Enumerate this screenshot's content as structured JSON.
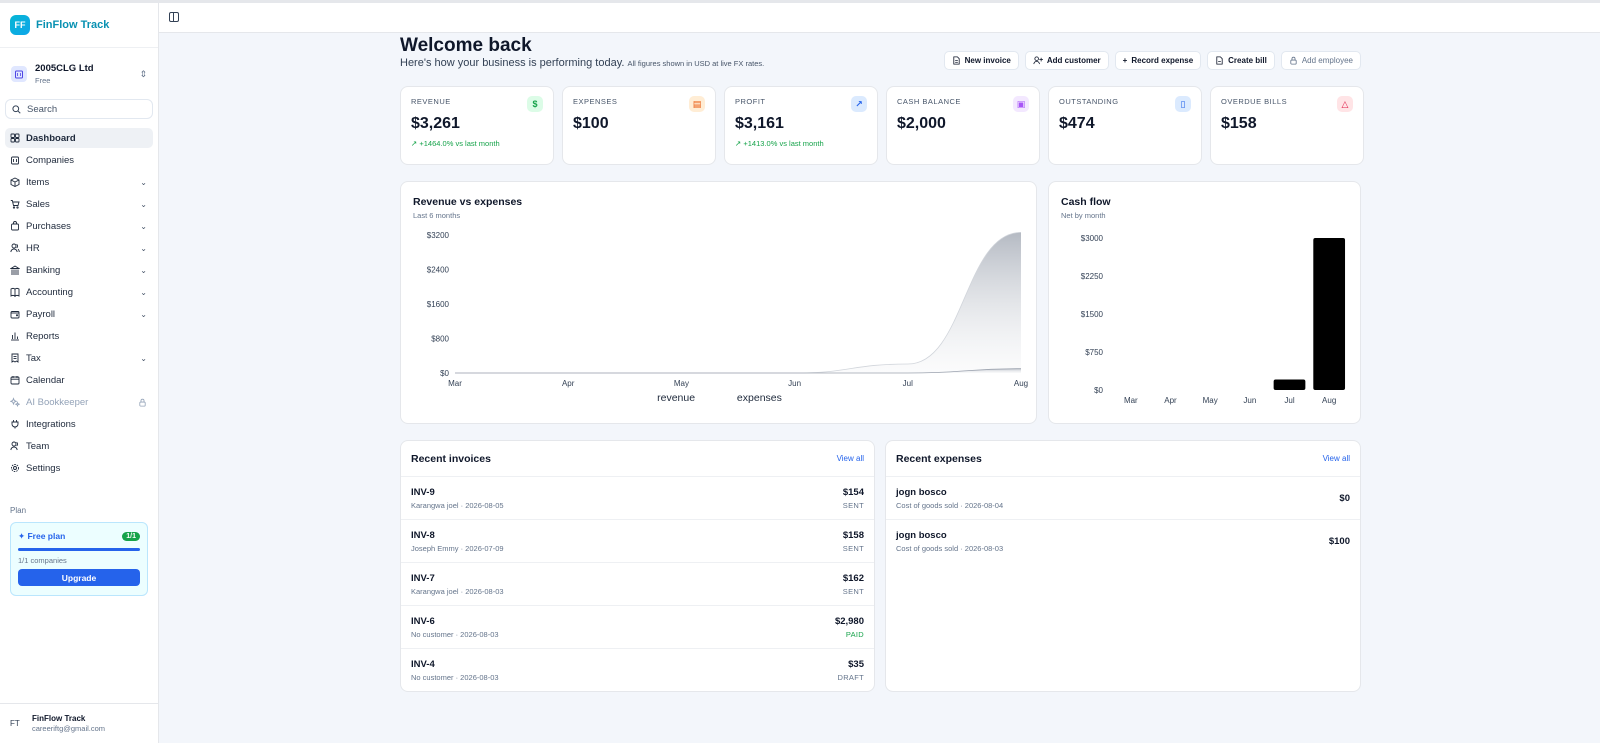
{
  "brand": {
    "logo": "FF",
    "name": "FinFlow Track"
  },
  "company": {
    "name": "2005CLG Ltd",
    "plan": "Free"
  },
  "search": {
    "placeholder": "Search"
  },
  "nav": [
    {
      "label": "Dashboard",
      "icon": "grid-icon"
    },
    {
      "label": "Companies",
      "icon": "building-icon"
    },
    {
      "label": "Items",
      "icon": "box-icon"
    },
    {
      "label": "Sales",
      "icon": "cart-icon"
    },
    {
      "label": "Purchases",
      "icon": "bag-icon"
    },
    {
      "label": "HR",
      "icon": "users-icon"
    },
    {
      "label": "Banking",
      "icon": "bank-icon"
    },
    {
      "label": "Accounting",
      "icon": "book-icon"
    },
    {
      "label": "Payroll",
      "icon": "wallet-icon"
    },
    {
      "label": "Reports",
      "icon": "bar-chart-icon"
    },
    {
      "label": "Tax",
      "icon": "receipt-icon"
    },
    {
      "label": "Calendar",
      "icon": "calendar-icon"
    },
    {
      "label": "AI Bookkeeper",
      "icon": "sparkles-icon"
    },
    {
      "label": "Integrations",
      "icon": "plug-icon"
    },
    {
      "label": "Team",
      "icon": "team-icon"
    },
    {
      "label": "Settings",
      "icon": "gear-icon"
    }
  ],
  "plan": {
    "section": "Plan",
    "name": "Free plan",
    "badge": "1/1",
    "usage": 1.0,
    "count": "1/1 companies",
    "upgrade": "Upgrade"
  },
  "user": {
    "initials": "FT",
    "name": "FinFlow Track",
    "email": "careeriftg@gmail.com"
  },
  "page": {
    "title": "Welcome back",
    "subtitle": "Here's how your business is performing today.",
    "note": "All figures shown in USD at live FX rates."
  },
  "actions": [
    "New invoice",
    "Add customer",
    "Record expense",
    "Create bill",
    "Add employee"
  ],
  "kpis": [
    {
      "label": "REVENUE",
      "value": "$3,261",
      "delta": "+1464.0% vs last month",
      "icon": "$",
      "color": "#16a34a",
      "bg": "#dcfce7"
    },
    {
      "label": "EXPENSES",
      "value": "$100",
      "delta": "",
      "icon": "▤",
      "color": "#ea580c",
      "bg": "#ffedd5"
    },
    {
      "label": "PROFIT",
      "value": "$3,161",
      "delta": "+1413.0% vs last month",
      "icon": "↗",
      "color": "#2563eb",
      "bg": "#dbeafe"
    },
    {
      "label": "CASH BALANCE",
      "value": "$2,000",
      "delta": "",
      "icon": "▣",
      "color": "#a855f7",
      "bg": "#f3e8ff"
    },
    {
      "label": "OUTSTANDING",
      "value": "$474",
      "delta": "",
      "icon": "▯",
      "color": "#2563eb",
      "bg": "#dbeafe"
    },
    {
      "label": "OVERDUE BILLS",
      "value": "$158",
      "delta": "",
      "icon": "△",
      "color": "#e11d48",
      "bg": "#ffe4e6"
    }
  ],
  "revenue_chart": {
    "title": "Revenue vs expenses",
    "subtitle": "Last 6 months"
  },
  "cashflow_chart": {
    "title": "Cash flow",
    "subtitle": "Net by month"
  },
  "chart_data": [
    {
      "type": "area",
      "title": "Revenue vs expenses",
      "x": [
        "Mar",
        "Apr",
        "May",
        "Jun",
        "Jul",
        "Aug"
      ],
      "series": [
        {
          "name": "revenue",
          "values": [
            0,
            0,
            0,
            0,
            208,
            3261
          ]
        },
        {
          "name": "expenses",
          "values": [
            0,
            0,
            0,
            0,
            0,
            100
          ]
        }
      ],
      "y_ticks": [
        "$0",
        "$800",
        "$1600",
        "$2400",
        "$3200"
      ],
      "ylim": [
        0,
        3200
      ],
      "legend": "bottom"
    },
    {
      "type": "bar",
      "title": "Cash flow",
      "categories": [
        "Mar",
        "Apr",
        "May",
        "Jun",
        "Jul",
        "Aug"
      ],
      "values": [
        0,
        0,
        0,
        0,
        208,
        3000
      ],
      "y_ticks": [
        "$0",
        "$750",
        "$1500",
        "$2250",
        "$3000"
      ],
      "ylim": [
        0,
        3000
      ]
    }
  ],
  "invoices": {
    "title": "Recent invoices",
    "view_all": "View all",
    "rows": [
      {
        "id": "INV-9",
        "sub": "Karangwa joel · 2026-08-05",
        "amount": "$154",
        "status": "SENT"
      },
      {
        "id": "INV-8",
        "sub": "Joseph Emmy · 2026-07-09",
        "amount": "$158",
        "status": "SENT"
      },
      {
        "id": "INV-7",
        "sub": "Karangwa joel · 2026-08-03",
        "amount": "$162",
        "status": "SENT"
      },
      {
        "id": "INV-6",
        "sub": "No customer · 2026-08-03",
        "amount": "$2,980",
        "status": "PAID"
      },
      {
        "id": "INV-4",
        "sub": "No customer · 2026-08-03",
        "amount": "$35",
        "status": "DRAFT"
      }
    ]
  },
  "expenses": {
    "title": "Recent expenses",
    "view_all": "View all",
    "rows": [
      {
        "name": "jogn bosco",
        "sub": "Cost of goods sold · 2026-08-04",
        "amount": "$0"
      },
      {
        "name": "jogn bosco",
        "sub": "Cost of goods sold · 2026-08-03",
        "amount": "$100"
      }
    ]
  }
}
